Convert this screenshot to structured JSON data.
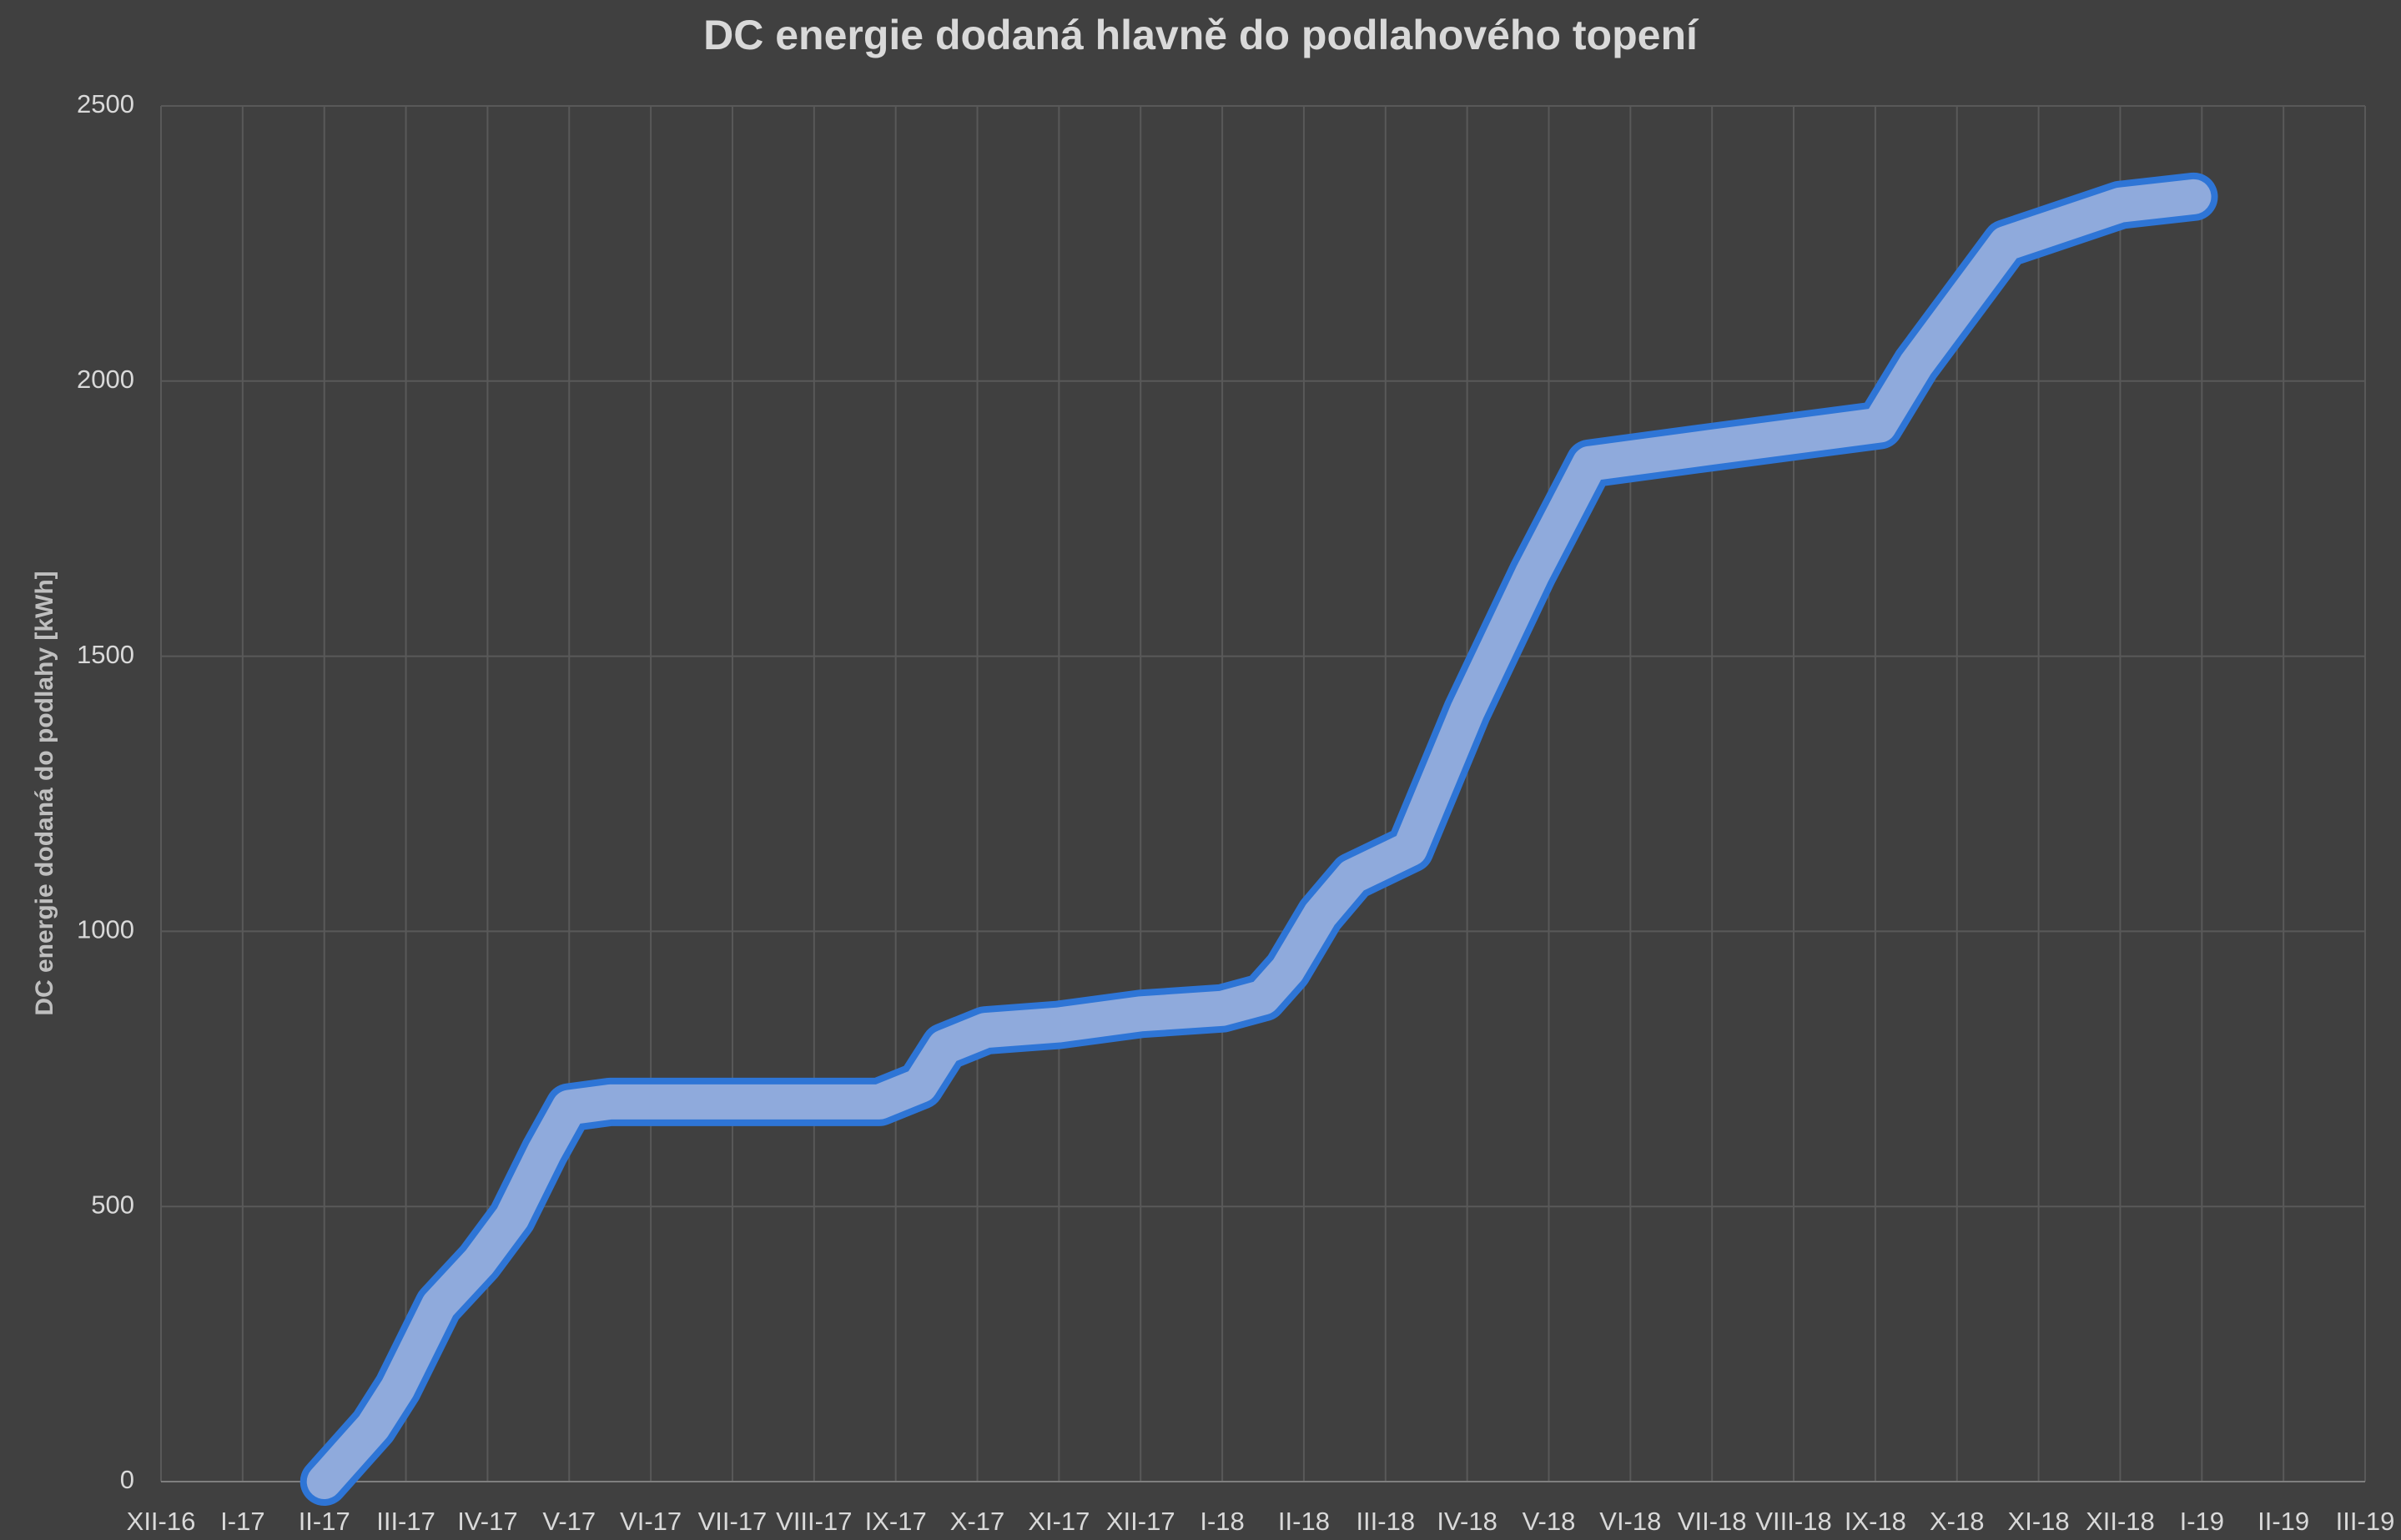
{
  "chart_data": {
    "type": "line",
    "title": "DC energie dodaná hlavně do podlahového topení",
    "y_label": "DC energie dodaná do podlahy [kWh]",
    "x": [
      2.0,
      2.3,
      2.6,
      2.9,
      3.4,
      3.9,
      4.3,
      4.7,
      5.0,
      5.5,
      8.8,
      9.3,
      9.6,
      10.1,
      11.0,
      12.0,
      13.0,
      13.5,
      13.8,
      14.2,
      14.6,
      15.3,
      16.0,
      16.8,
      17.5,
      19.0,
      21.05,
      21.5,
      22.0,
      22.6,
      23.0,
      24.0,
      24.9
    ],
    "values": [
      0,
      50,
      100,
      170,
      320,
      400,
      480,
      600,
      680,
      690,
      690,
      720,
      790,
      820,
      830,
      850,
      860,
      880,
      930,
      1030,
      1100,
      1150,
      1400,
      1650,
      1850,
      1880,
      1920,
      2030,
      2130,
      2250,
      2270,
      2320,
      2335
    ],
    "color": "#8faadc",
    "edge_color": "#2e75d6",
    "xlim": [
      0,
      27
    ],
    "xticks": [
      {
        "value": 0,
        "label": "XII-16"
      },
      {
        "value": 1,
        "label": "I-17"
      },
      {
        "value": 2,
        "label": "II-17"
      },
      {
        "value": 3,
        "label": "III-17"
      },
      {
        "value": 4,
        "label": "IV-17"
      },
      {
        "value": 5,
        "label": "V-17"
      },
      {
        "value": 6,
        "label": "VI-17"
      },
      {
        "value": 7,
        "label": "VII-17"
      },
      {
        "value": 8,
        "label": "VIII-17"
      },
      {
        "value": 9,
        "label": "IX-17"
      },
      {
        "value": 10,
        "label": "X-17"
      },
      {
        "value": 11,
        "label": "XI-17"
      },
      {
        "value": 12,
        "label": "XII-17"
      },
      {
        "value": 13,
        "label": "I-18"
      },
      {
        "value": 14,
        "label": "II-18"
      },
      {
        "value": 15,
        "label": "III-18"
      },
      {
        "value": 16,
        "label": "IV-18"
      },
      {
        "value": 17,
        "label": "V-18"
      },
      {
        "value": 18,
        "label": "VI-18"
      },
      {
        "value": 19,
        "label": "VII-18"
      },
      {
        "value": 20,
        "label": "VIII-18"
      },
      {
        "value": 21,
        "label": "IX-18"
      },
      {
        "value": 22,
        "label": "X-18"
      },
      {
        "value": 23,
        "label": "XI-18"
      },
      {
        "value": 24,
        "label": "XII-18"
      },
      {
        "value": 25,
        "label": "I-19"
      },
      {
        "value": 26,
        "label": "II-19"
      },
      {
        "value": 27,
        "label": "III-19"
      }
    ],
    "ylim": [
      0,
      2500
    ],
    "yticks": [
      0,
      500,
      1000,
      1500,
      2000,
      2500
    ],
    "grid": true
  }
}
